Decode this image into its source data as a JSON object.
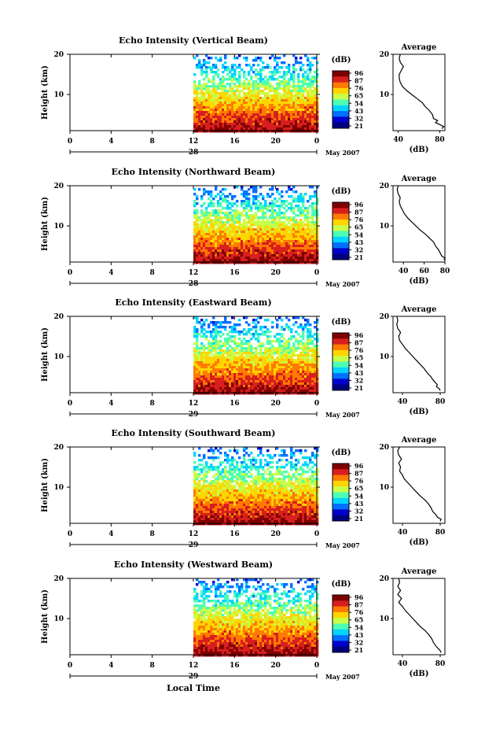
{
  "figure": {
    "bottom_xlabel": "Local Time",
    "colorbar_unit": "(dB)",
    "colorbar_ticks": [
      "96",
      "87",
      "76",
      "65",
      "54",
      "43",
      "32",
      "21"
    ],
    "avg_title": "Average",
    "avg_xlabel": "(dB)",
    "main_ylabel": "Height (km)",
    "month_label": "May 2007",
    "colormap": [
      "#7f0000",
      "#d81e1e",
      "#ff7a00",
      "#ffd500",
      "#c8ff4a",
      "#4dffb3",
      "#00d4ff",
      "#0070ff",
      "#0000cc",
      "#00007f"
    ]
  },
  "chart_data": [
    {
      "type": "heatmap",
      "title": "Echo Intensity (Vertical Beam)",
      "ylabel": "Height (km)",
      "x_ticks": [
        "0",
        "4",
        "8",
        "12",
        "16",
        "20",
        "0"
      ],
      "y_ticks": [
        "20",
        "10"
      ],
      "xlim": [
        0,
        24
      ],
      "ylim": [
        1,
        20
      ],
      "date_label": "28",
      "data_start_hour": 12,
      "colorbar": {
        "ticks": [
          "96",
          "87",
          "76",
          "65",
          "54",
          "43",
          "32",
          "21"
        ],
        "unit": "(dB)"
      },
      "average": {
        "title": "Average",
        "xlabel": "(dB)",
        "x_ticks": [
          "40",
          "80"
        ],
        "xlim": [
          35,
          85
        ],
        "profile": [
          [
            1.5,
            82
          ],
          [
            2,
            84
          ],
          [
            2.5,
            80
          ],
          [
            3,
            76
          ],
          [
            3.5,
            78
          ],
          [
            4,
            74
          ],
          [
            5,
            73
          ],
          [
            6,
            70
          ],
          [
            7,
            66
          ],
          [
            8,
            63
          ],
          [
            9,
            58
          ],
          [
            10,
            53
          ],
          [
            11,
            48
          ],
          [
            12,
            44
          ],
          [
            13,
            42
          ],
          [
            14,
            41
          ],
          [
            15,
            41
          ],
          [
            16,
            43
          ],
          [
            17,
            45
          ],
          [
            18,
            42
          ],
          [
            19,
            41
          ],
          [
            20,
            42
          ]
        ]
      }
    },
    {
      "type": "heatmap",
      "title": "Echo Intensity (Northward Beam)",
      "ylabel": "Height (km)",
      "x_ticks": [
        "0",
        "4",
        "8",
        "12",
        "16",
        "20",
        "0"
      ],
      "y_ticks": [
        "20",
        "10"
      ],
      "xlim": [
        0,
        24
      ],
      "ylim": [
        1,
        20
      ],
      "date_label": "28",
      "data_start_hour": 12,
      "colorbar": {
        "ticks": [
          "96",
          "87",
          "76",
          "65",
          "54",
          "43",
          "32",
          "21"
        ],
        "unit": "(dB)"
      },
      "average": {
        "title": "Average",
        "xlabel": "(dB)",
        "x_ticks": [
          "40",
          "60",
          "80"
        ],
        "xlim": [
          30,
          80
        ],
        "profile": [
          [
            1.5,
            79
          ],
          [
            2,
            80
          ],
          [
            2.5,
            77
          ],
          [
            3,
            76
          ],
          [
            4,
            74
          ],
          [
            5,
            71
          ],
          [
            6,
            69
          ],
          [
            7,
            65
          ],
          [
            8,
            61
          ],
          [
            9,
            56
          ],
          [
            10,
            52
          ],
          [
            11,
            48
          ],
          [
            12,
            44
          ],
          [
            13,
            41
          ],
          [
            14,
            39
          ],
          [
            15,
            37
          ],
          [
            16,
            36
          ],
          [
            17,
            37
          ],
          [
            18,
            35
          ],
          [
            19,
            34
          ],
          [
            20,
            35
          ]
        ]
      }
    },
    {
      "type": "heatmap",
      "title": "Echo Intensity (Eastward Beam)",
      "ylabel": "Height (km)",
      "x_ticks": [
        "0",
        "4",
        "8",
        "12",
        "16",
        "20",
        "0"
      ],
      "y_ticks": [
        "20",
        "10"
      ],
      "xlim": [
        0,
        24
      ],
      "ylim": [
        1,
        20
      ],
      "date_label": "29",
      "data_start_hour": 12,
      "colorbar": {
        "ticks": [
          "96",
          "87",
          "76",
          "65",
          "54",
          "43",
          "32",
          "21"
        ],
        "unit": "(dB)"
      },
      "average": {
        "title": "Average",
        "xlabel": "(dB)",
        "x_ticks": [
          "40",
          "80"
        ],
        "xlim": [
          30,
          85
        ],
        "profile": [
          [
            1.5,
            80
          ],
          [
            2,
            79
          ],
          [
            2.5,
            76
          ],
          [
            3,
            77
          ],
          [
            4,
            73
          ],
          [
            5,
            70
          ],
          [
            6,
            66
          ],
          [
            7,
            63
          ],
          [
            8,
            59
          ],
          [
            9,
            55
          ],
          [
            10,
            51
          ],
          [
            11,
            47
          ],
          [
            12,
            43
          ],
          [
            13,
            40
          ],
          [
            14,
            37
          ],
          [
            15,
            36
          ],
          [
            16,
            38
          ],
          [
            17,
            35
          ],
          [
            18,
            34
          ],
          [
            19,
            35
          ],
          [
            20,
            34
          ]
        ]
      }
    },
    {
      "type": "heatmap",
      "title": "Echo Intensity (Southward Beam)",
      "ylabel": "Height (km)",
      "x_ticks": [
        "0",
        "4",
        "8",
        "12",
        "16",
        "20",
        "0"
      ],
      "y_ticks": [
        "20",
        "10"
      ],
      "xlim": [
        0,
        24
      ],
      "ylim": [
        1,
        20
      ],
      "date_label": "29",
      "data_start_hour": 12,
      "colorbar": {
        "ticks": [
          "96",
          "87",
          "76",
          "65",
          "54",
          "43",
          "32",
          "21"
        ],
        "unit": "(dB)"
      },
      "average": {
        "title": "Average",
        "xlabel": "(dB)",
        "x_ticks": [
          "40",
          "80"
        ],
        "xlim": [
          30,
          85
        ],
        "profile": [
          [
            1.5,
            80
          ],
          [
            2,
            81
          ],
          [
            2.5,
            77
          ],
          [
            3,
            76
          ],
          [
            4,
            72
          ],
          [
            5,
            70
          ],
          [
            6,
            67
          ],
          [
            7,
            63
          ],
          [
            8,
            58
          ],
          [
            9,
            54
          ],
          [
            10,
            50
          ],
          [
            11,
            46
          ],
          [
            12,
            42
          ],
          [
            13,
            40
          ],
          [
            14,
            37
          ],
          [
            15,
            38
          ],
          [
            16,
            36
          ],
          [
            17,
            39
          ],
          [
            18,
            36
          ],
          [
            19,
            35
          ],
          [
            20,
            37
          ]
        ]
      }
    },
    {
      "type": "heatmap",
      "title": "Echo Intensity (Westward Beam)",
      "ylabel": "Height (km)",
      "x_ticks": [
        "0",
        "4",
        "8",
        "12",
        "16",
        "20",
        "0"
      ],
      "y_ticks": [
        "20",
        "10"
      ],
      "xlim": [
        0,
        24
      ],
      "ylim": [
        1,
        20
      ],
      "date_label": "29",
      "data_start_hour": 12,
      "colorbar": {
        "ticks": [
          "96",
          "87",
          "76",
          "65",
          "54",
          "43",
          "32",
          "21"
        ],
        "unit": "(dB)"
      },
      "average": {
        "title": "Average",
        "xlabel": "(dB)",
        "x_ticks": [
          "40",
          "80"
        ],
        "xlim": [
          30,
          85
        ],
        "profile": [
          [
            1.5,
            81
          ],
          [
            2,
            80
          ],
          [
            2.5,
            78
          ],
          [
            3,
            76
          ],
          [
            4,
            73
          ],
          [
            5,
            71
          ],
          [
            6,
            68
          ],
          [
            7,
            64
          ],
          [
            8,
            59
          ],
          [
            9,
            55
          ],
          [
            10,
            51
          ],
          [
            11,
            47
          ],
          [
            12,
            43
          ],
          [
            13,
            40
          ],
          [
            14,
            36
          ],
          [
            15,
            39
          ],
          [
            16,
            35
          ],
          [
            17,
            38
          ],
          [
            18,
            35
          ],
          [
            19,
            37
          ],
          [
            20,
            36
          ]
        ]
      }
    }
  ]
}
